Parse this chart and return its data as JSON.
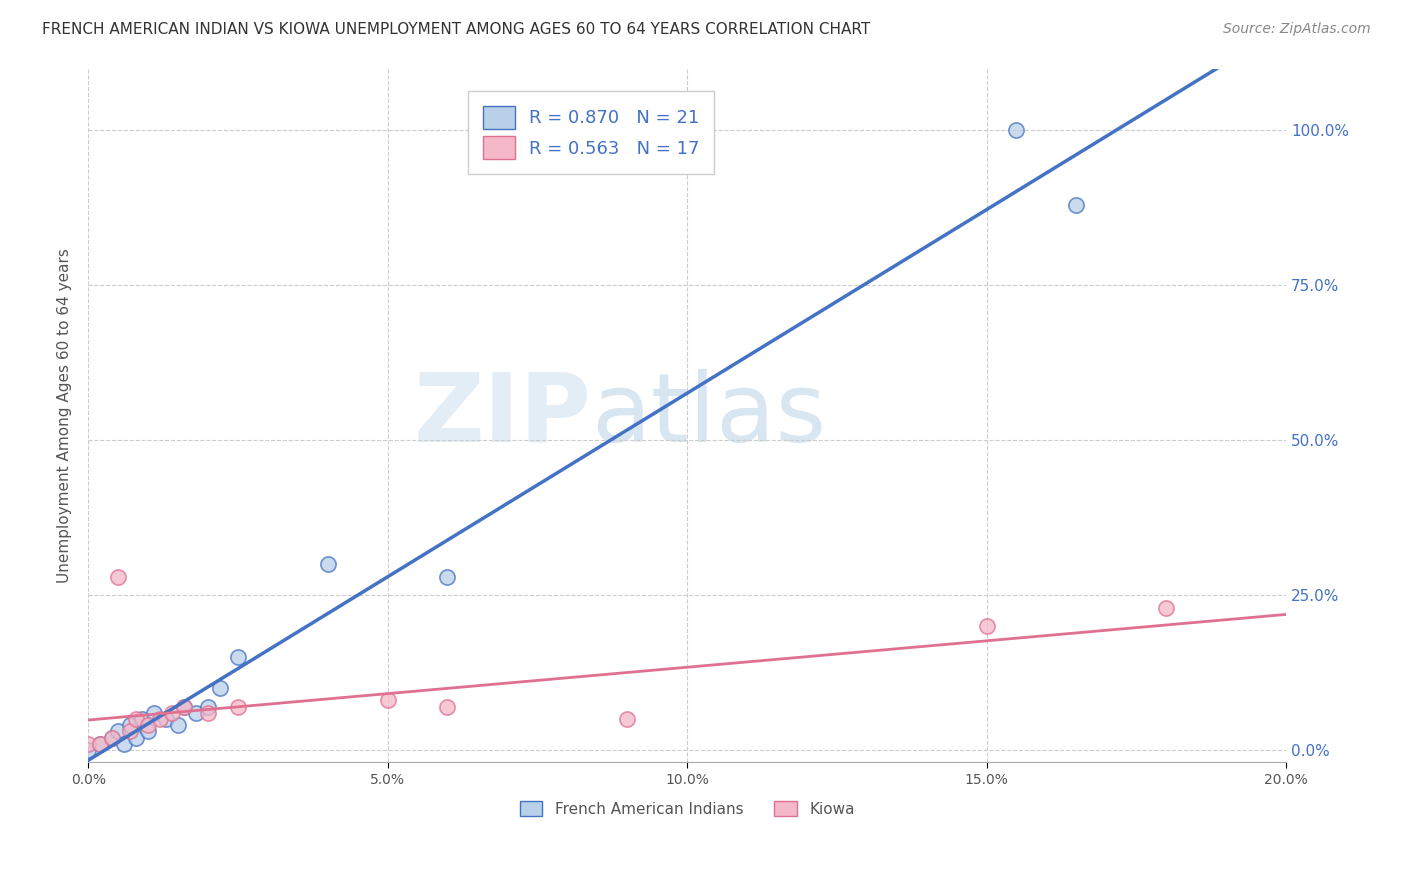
{
  "title": "FRENCH AMERICAN INDIAN VS KIOWA UNEMPLOYMENT AMONG AGES 60 TO 64 YEARS CORRELATION CHART",
  "source": "Source: ZipAtlas.com",
  "ylabel": "Unemployment Among Ages 60 to 64 years",
  "xlim": [
    0.0,
    0.2
  ],
  "ylim": [
    -0.02,
    1.1
  ],
  "yticks": [
    0.0,
    0.25,
    0.5,
    0.75,
    1.0
  ],
  "yticklabels": [
    "0.0%",
    "25.0%",
    "50.0%",
    "75.0%",
    "100.0%"
  ],
  "xticks": [
    0.0,
    0.05,
    0.1,
    0.15,
    0.2
  ],
  "xticklabels": [
    "0.0%",
    "5.0%",
    "10.0%",
    "15.0%",
    "20.0%"
  ],
  "french_R": 0.87,
  "french_N": 21,
  "kiowa_R": 0.563,
  "kiowa_N": 17,
  "french_color": "#b8d0e8",
  "french_line_color": "#4472c4",
  "kiowa_color": "#f4b8c8",
  "kiowa_line_color": "#e07090",
  "watermark_zip": "ZIP",
  "watermark_atlas": "atlas",
  "background_color": "#ffffff",
  "grid_color": "#cccccc",
  "french_x": [
    0.0,
    0.002,
    0.004,
    0.005,
    0.006,
    0.007,
    0.008,
    0.009,
    0.01,
    0.011,
    0.013,
    0.015,
    0.016,
    0.018,
    0.02,
    0.022,
    0.025,
    0.04,
    0.06,
    0.155,
    0.165
  ],
  "french_y": [
    0.0,
    0.01,
    0.02,
    0.03,
    0.01,
    0.04,
    0.02,
    0.05,
    0.03,
    0.06,
    0.05,
    0.04,
    0.07,
    0.06,
    0.07,
    0.1,
    0.15,
    0.3,
    0.28,
    1.0,
    0.88
  ],
  "kiowa_x": [
    0.0,
    0.002,
    0.004,
    0.005,
    0.007,
    0.008,
    0.01,
    0.012,
    0.014,
    0.016,
    0.02,
    0.025,
    0.05,
    0.06,
    0.09,
    0.15,
    0.18
  ],
  "kiowa_y": [
    0.01,
    0.01,
    0.02,
    0.28,
    0.03,
    0.05,
    0.04,
    0.05,
    0.06,
    0.07,
    0.06,
    0.07,
    0.08,
    0.07,
    0.05,
    0.2,
    0.23
  ],
  "legend_label_french": "French American Indians",
  "legend_label_kiowa": "Kiowa",
  "title_color": "#333333",
  "axis_label_color": "#555555",
  "legend_r_color": "#4472c4",
  "scatter_size": 120,
  "title_fontsize": 11,
  "source_fontsize": 10,
  "ylabel_fontsize": 11,
  "tick_fontsize": 10,
  "legend_fontsize": 13
}
